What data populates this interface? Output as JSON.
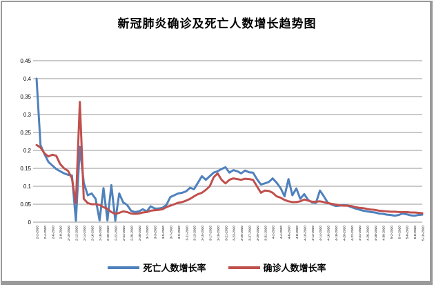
{
  "window": {
    "background": "#ffffff",
    "frame_border_color": "#9a9a9a"
  },
  "title": "新冠肺炎确诊及死亡人数增长趋势图",
  "legend": [
    {
      "label": "死亡人数增长率",
      "color": "#4F81BD"
    },
    {
      "label": "确诊人数增长率",
      "color": "#C0504D"
    }
  ],
  "chart_data": {
    "type": "line",
    "title": "新冠肺炎确诊及死亡人数增长趋势图",
    "xlabel": "",
    "ylabel": "",
    "ylim": [
      0,
      0.45
    ],
    "grid": true,
    "grid_color": "#969696",
    "legend_position": "bottom",
    "y_ticks": [
      "0.45",
      "0.4",
      "0.35",
      "0.3",
      "0.25",
      "0.2",
      "0.15",
      "0.1",
      "0.05",
      "0"
    ],
    "x_label_every": 2,
    "categories": [
      "2-2-2020",
      "2-3-2020",
      "2-4-2020",
      "2-5-2020",
      "2-6-2020",
      "2-7-2020",
      "2-8-2020",
      "2-9-2020",
      "2-10-2020",
      "2-11-2020",
      "2-12-2020",
      "2-13-2020",
      "2-14-2020",
      "2-15-2020",
      "2-16-2020",
      "2-17-2020",
      "2-18-2020",
      "2-19-2020",
      "2-20-2020",
      "2-21-2020",
      "2-22-2020",
      "2-23-2020",
      "2-24-2020",
      "2-25-2020",
      "2-26-2020",
      "2-27-2020",
      "2-28-2020",
      "2-29-2020",
      "3-1-2020",
      "3-2-2020",
      "3-3-2020",
      "3-4-2020",
      "3-5-2020",
      "3-6-2020",
      "3-7-2020",
      "3-8-2020",
      "3-9-2020",
      "3-10-2020",
      "3-11-2020",
      "3-12-2020",
      "3-13-2020",
      "3-14-2020",
      "3-15-2020",
      "3-16-2020",
      "3-17-2020",
      "3-18-2020",
      "3-19-2020",
      "3-20-2020",
      "3-21-2020",
      "3-22-2020",
      "3-23-2020",
      "3-24-2020",
      "3-25-2020",
      "3-26-2020",
      "3-27-2020",
      "3-28-2020",
      "3-29-2020",
      "3-30-2020",
      "3-31-2020",
      "4-1-2020",
      "4-2-2020",
      "4-3-2020",
      "4-4-2020",
      "4-5-2020",
      "4-6-2020",
      "4-7-2020",
      "4-8-2020",
      "4-9-2020",
      "4-10-2020",
      "4-11-2020",
      "4-12-2020",
      "4-13-2020",
      "4-14-2020",
      "4-15-2020",
      "4-16-2020",
      "4-17-2020",
      "4-18-2020",
      "4-19-2020",
      "4-20-2020",
      "4-21-2020",
      "4-22-2020",
      "4-23-2020",
      "4-24-2020",
      "4-25-2020",
      "4-26-2020",
      "4-27-2020",
      "4-28-2020",
      "4-29-2020",
      "4-30-2020",
      "5-1-2020",
      "5-2-2020",
      "5-3-2020",
      "5-4-2020",
      "5-5-2020",
      "5-6-2020",
      "5-7-2020",
      "5-8-2020",
      "5-9-2020",
      "5-10-2020"
    ],
    "series": [
      {
        "name": "死亡人数增长率",
        "color": "#4F81BD",
        "values": [
          0.4,
          0.215,
          0.19,
          0.168,
          0.158,
          0.148,
          0.142,
          0.136,
          0.132,
          0.13,
          0.004,
          0.21,
          0.11,
          0.075,
          0.08,
          0.065,
          0.005,
          0.095,
          0.005,
          0.103,
          0.004,
          0.08,
          0.055,
          0.048,
          0.032,
          0.028,
          0.03,
          0.036,
          0.03,
          0.044,
          0.038,
          0.038,
          0.04,
          0.048,
          0.07,
          0.075,
          0.08,
          0.082,
          0.086,
          0.096,
          0.092,
          0.11,
          0.128,
          0.118,
          0.128,
          0.138,
          0.142,
          0.148,
          0.153,
          0.138,
          0.145,
          0.142,
          0.136,
          0.144,
          0.139,
          0.138,
          0.12,
          0.105,
          0.108,
          0.112,
          0.122,
          0.11,
          0.095,
          0.072,
          0.12,
          0.075,
          0.094,
          0.065,
          0.078,
          0.062,
          0.055,
          0.054,
          0.088,
          0.072,
          0.054,
          0.049,
          0.045,
          0.046,
          0.048,
          0.046,
          0.042,
          0.038,
          0.035,
          0.032,
          0.03,
          0.028,
          0.027,
          0.024,
          0.023,
          0.021,
          0.02,
          0.018,
          0.02,
          0.024,
          0.022,
          0.019,
          0.018,
          0.02,
          0.021
        ]
      },
      {
        "name": "确诊人数增长率",
        "color": "#C0504D",
        "values": [
          0.215,
          0.208,
          0.192,
          0.183,
          0.188,
          0.185,
          0.162,
          0.15,
          0.143,
          0.122,
          0.052,
          0.335,
          0.065,
          0.053,
          0.05,
          0.05,
          0.048,
          0.042,
          0.037,
          0.028,
          0.023,
          0.026,
          0.03,
          0.028,
          0.024,
          0.023,
          0.024,
          0.027,
          0.028,
          0.032,
          0.033,
          0.034,
          0.036,
          0.042,
          0.046,
          0.05,
          0.054,
          0.056,
          0.06,
          0.065,
          0.072,
          0.078,
          0.082,
          0.09,
          0.1,
          0.125,
          0.136,
          0.118,
          0.108,
          0.118,
          0.122,
          0.12,
          0.118,
          0.121,
          0.12,
          0.118,
          0.1,
          0.082,
          0.088,
          0.087,
          0.082,
          0.072,
          0.068,
          0.062,
          0.058,
          0.056,
          0.056,
          0.058,
          0.063,
          0.06,
          0.057,
          0.057,
          0.058,
          0.056,
          0.053,
          0.051,
          0.049,
          0.047,
          0.046,
          0.046,
          0.045,
          0.042,
          0.04,
          0.039,
          0.037,
          0.035,
          0.034,
          0.032,
          0.031,
          0.03,
          0.029,
          0.029,
          0.028,
          0.028,
          0.028,
          0.027,
          0.027,
          0.026,
          0.025
        ]
      }
    ]
  }
}
